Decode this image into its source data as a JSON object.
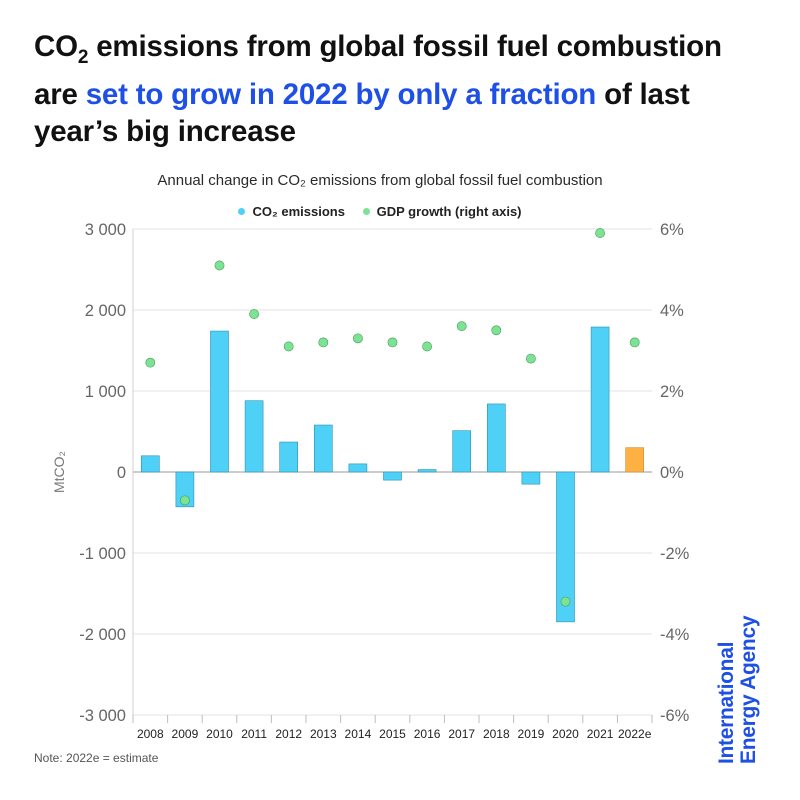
{
  "headline": {
    "part1": "CO",
    "part1_sub": "2",
    "part2": " emissions from global fossil fuel combustion are ",
    "highlight": "set to grow in 2022 by only a fraction",
    "part3": " of last year’s big increase"
  },
  "accent_color": "#1e4fe6",
  "note": "Note: 2022e = estimate",
  "logo": {
    "line1": "International",
    "line2": "Energy Agency"
  },
  "chart_data": {
    "type": "bar",
    "title": "Annual change in CO₂ emissions from global fossil fuel combustion",
    "ylabel": "MtCO₂",
    "ylim": [
      -3000,
      3000
    ],
    "y2lim": [
      -6,
      6
    ],
    "y_ticks": [
      "3 000",
      "2 000",
      "1 000",
      "0",
      "-1 000",
      "-2 000",
      "-3 000"
    ],
    "y2_ticks": [
      "6%",
      "4%",
      "2%",
      "0%",
      "-2%",
      "-4%",
      "-6%"
    ],
    "grid": true,
    "legend_position": "top-center",
    "categories": [
      "2008",
      "2009",
      "2010",
      "2011",
      "2012",
      "2013",
      "2014",
      "2015",
      "2016",
      "2017",
      "2018",
      "2019",
      "2020",
      "2021",
      "2022e"
    ],
    "series": [
      {
        "name": "CO₂ emissions",
        "type": "bar",
        "color": "#4fd1f7",
        "estimate_color": "#fdb143",
        "values": [
          200,
          -430,
          1740,
          880,
          370,
          580,
          100,
          -100,
          30,
          510,
          840,
          -150,
          -1850,
          1790,
          300
        ]
      },
      {
        "name": "GDP growth (right axis)",
        "type": "scatter",
        "axis": "right",
        "color": "#7de394",
        "values": [
          2.7,
          -0.7,
          5.1,
          3.9,
          3.1,
          3.2,
          3.3,
          3.2,
          3.1,
          3.6,
          3.5,
          2.8,
          -3.2,
          5.9,
          3.2
        ]
      }
    ]
  }
}
